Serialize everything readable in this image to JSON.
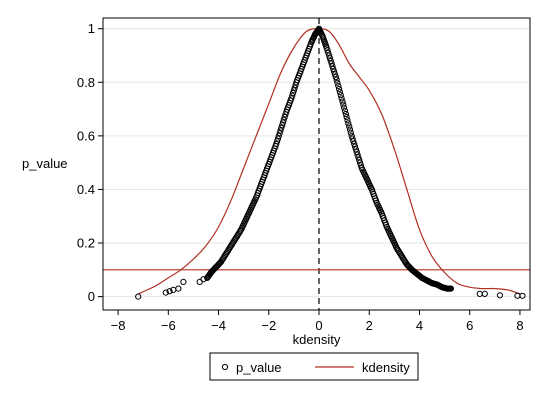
{
  "chart_data": {
    "type": "scatter",
    "title": "",
    "xlabel": "kdensity",
    "ylabel": "p_value",
    "xlim": [
      -8.6,
      8.4
    ],
    "ylim": [
      -0.05,
      1.04
    ],
    "x_ticks": [
      -8,
      -6,
      -4,
      -2,
      0,
      2,
      4,
      6,
      8
    ],
    "x_tick_labels": [
      "−8",
      "−6",
      "−4",
      "−2",
      "0",
      "2",
      "4",
      "6",
      "8"
    ],
    "y_ticks": [
      0,
      0.2,
      0.4,
      0.6,
      0.8,
      1
    ],
    "y_tick_labels": [
      "0",
      "0.2",
      "0.4",
      "0.6",
      "0.8",
      "1"
    ],
    "grid": "y",
    "legend_position": "bottom",
    "reference_lines": {
      "vertical_x": 0,
      "vertical_style": "dashed",
      "horizontal_y": 0.1,
      "horizontal_color": "#b03020"
    },
    "series": [
      {
        "name": "p_value",
        "kind": "scatter",
        "marker": "hollow-circle",
        "color": "#000000",
        "x": [
          -7.2,
          -6.1,
          -5.95,
          -5.8,
          -5.6,
          -5.4,
          -4.75,
          -4.6,
          -4.45,
          -4.3,
          -4.1,
          -3.9,
          -3.7,
          -3.5,
          -3.3,
          -3.1,
          -2.9,
          -2.7,
          -2.5,
          -2.3,
          -2.1,
          -1.9,
          -1.7,
          -1.5,
          -1.3,
          -1.1,
          -0.9,
          -0.7,
          -0.5,
          -0.3,
          -0.15,
          0,
          0.15,
          0.3,
          0.5,
          0.7,
          0.9,
          1.1,
          1.3,
          1.5,
          1.7,
          1.9,
          2.1,
          2.3,
          2.5,
          2.7,
          2.9,
          3.1,
          3.3,
          3.5,
          3.7,
          3.9,
          4.1,
          4.3,
          4.5,
          4.7,
          4.9,
          5.1,
          5.25,
          6.4,
          6.6,
          7.2,
          7.9,
          8.1
        ],
        "y": [
          0.0,
          0.015,
          0.02,
          0.025,
          0.03,
          0.055,
          0.055,
          0.065,
          0.07,
          0.09,
          0.11,
          0.13,
          0.16,
          0.19,
          0.22,
          0.25,
          0.29,
          0.33,
          0.37,
          0.42,
          0.47,
          0.52,
          0.57,
          0.63,
          0.69,
          0.74,
          0.8,
          0.85,
          0.9,
          0.95,
          0.98,
          1.0,
          0.97,
          0.93,
          0.87,
          0.81,
          0.74,
          0.67,
          0.6,
          0.54,
          0.48,
          0.44,
          0.4,
          0.35,
          0.31,
          0.26,
          0.22,
          0.18,
          0.15,
          0.12,
          0.1,
          0.085,
          0.07,
          0.06,
          0.05,
          0.045,
          0.035,
          0.03,
          0.03,
          0.01,
          0.01,
          0.005,
          0.003,
          0.003
        ]
      },
      {
        "name": "kdensity",
        "kind": "line",
        "color": "#b03020",
        "x": [
          -7.2,
          -6.5,
          -6,
          -5.5,
          -5,
          -4.5,
          -4,
          -3.5,
          -3,
          -2.5,
          -2,
          -1.5,
          -1,
          -0.5,
          0,
          0.4,
          0.8,
          1.2,
          1.6,
          2,
          2.5,
          3,
          3.5,
          4,
          4.5,
          5,
          5.5,
          6,
          6.5,
          7,
          7.5,
          8
        ],
        "y": [
          0.01,
          0.04,
          0.07,
          0.1,
          0.14,
          0.19,
          0.26,
          0.36,
          0.48,
          0.6,
          0.72,
          0.84,
          0.93,
          0.99,
          1.0,
          0.99,
          0.94,
          0.87,
          0.82,
          0.77,
          0.68,
          0.55,
          0.4,
          0.25,
          0.15,
          0.09,
          0.05,
          0.035,
          0.03,
          0.03,
          0.025,
          0.01
        ]
      }
    ]
  }
}
